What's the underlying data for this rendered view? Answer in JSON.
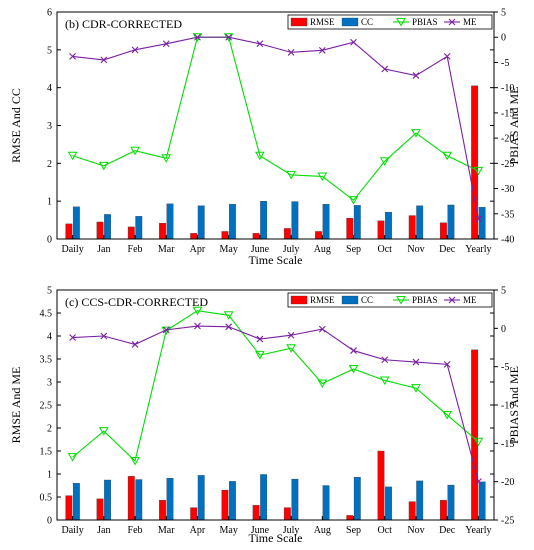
{
  "chart_data": [
    {
      "type": "bar",
      "title": "(b) CDR-CORRECTED",
      "xlabel": "Time Scale",
      "ylabel": "RMSE And CC",
      "y2label": "PBIAS And ME",
      "ylim": [
        0,
        6
      ],
      "y2lim": [
        -40,
        5
      ],
      "yticks": [
        "0",
        "1",
        "2",
        "3",
        "4",
        "5",
        "6"
      ],
      "y2ticks": [
        "5",
        "0",
        "-5",
        "-10",
        "-15",
        "-20",
        "-25",
        "-30",
        "-35",
        "-40"
      ],
      "categories": [
        "Daily",
        "Jan",
        "Feb",
        "Mar",
        "Apr",
        "May",
        "June",
        "July",
        "Aug",
        "Sep",
        "Oct",
        "Nov",
        "Dec",
        "Yearly"
      ],
      "legend_position": "top-right",
      "series": [
        {
          "name": "RMSE",
          "kind": "bar",
          "axis": "left",
          "color": "#ff0000",
          "values": [
            0.4,
            0.45,
            0.32,
            0.42,
            0.15,
            0.2,
            0.15,
            0.28,
            0.2,
            0.55,
            0.48,
            0.62,
            0.43,
            4.05
          ]
        },
        {
          "name": "CC",
          "kind": "bar",
          "axis": "left",
          "color": "#0070c0",
          "values": [
            0.85,
            0.65,
            0.6,
            0.93,
            0.88,
            0.92,
            1.0,
            0.99,
            0.92,
            0.89,
            0.71,
            0.88,
            0.9,
            0.84
          ]
        },
        {
          "name": "PBIAS",
          "kind": "line",
          "axis": "right",
          "marker": "triangle-down",
          "color": "#00dd00",
          "values": [
            -23.5,
            -25.5,
            -22.5,
            -24.0,
            0.0,
            0.0,
            -23.5,
            -27.3,
            -27.6,
            -32.3,
            -24.6,
            -19.0,
            -23.5,
            -26.5
          ]
        },
        {
          "name": "ME",
          "kind": "line",
          "axis": "right",
          "marker": "x",
          "color": "#7a1fa2",
          "values": [
            -3.8,
            -4.5,
            -2.5,
            -1.3,
            0.0,
            0.0,
            -1.3,
            -3.0,
            -2.6,
            -1.0,
            -6.3,
            -7.6,
            -3.8,
            -36.0
          ]
        }
      ]
    },
    {
      "type": "bar",
      "title": "(c) CCS-CDR-CORRECTED",
      "xlabel": "Time Scale",
      "ylabel": "RMSE And ME",
      "y2label": "PBIAS And ME",
      "ylim": [
        0,
        5
      ],
      "y2lim": [
        -25,
        5
      ],
      "yticks": [
        "0",
        "0.5",
        "1",
        "1.5",
        "2",
        "2.5",
        "3",
        "3.5",
        "4",
        "4.5",
        "5"
      ],
      "y2ticks": [
        "5",
        "0",
        "-5",
        "-10",
        "-15",
        "-20",
        "-25"
      ],
      "categories": [
        "Daily",
        "Jan",
        "Feb",
        "Mar",
        "Apr",
        "May",
        "June",
        "July",
        "Aug",
        "Sep",
        "Oct",
        "Nov",
        "Dec",
        "Yearly"
      ],
      "legend_position": "top-right",
      "series": [
        {
          "name": "RMSE",
          "kind": "bar",
          "axis": "left",
          "color": "#ff0000",
          "values": [
            0.53,
            0.46,
            0.95,
            0.43,
            0.27,
            0.65,
            0.32,
            0.27,
            0.0,
            0.1,
            1.5,
            0.4,
            0.43,
            3.7
          ]
        },
        {
          "name": "CC",
          "kind": "bar",
          "axis": "left",
          "color": "#0070c0",
          "values": [
            0.8,
            0.87,
            0.88,
            0.91,
            0.97,
            0.84,
            0.99,
            0.89,
            0.75,
            0.93,
            0.72,
            0.85,
            0.76,
            0.83
          ]
        },
        {
          "name": "PBIAS",
          "kind": "line",
          "axis": "right",
          "marker": "triangle-down",
          "color": "#00dd00",
          "values": [
            -16.8,
            -13.4,
            -17.3,
            -0.3,
            2.3,
            1.7,
            -3.5,
            -2.6,
            -7.2,
            -5.3,
            -6.8,
            -7.8,
            -11.3,
            -14.8
          ]
        },
        {
          "name": "ME",
          "kind": "line",
          "axis": "right",
          "marker": "x",
          "color": "#7a1fa2",
          "values": [
            -1.2,
            -1.0,
            -2.1,
            -0.2,
            0.3,
            0.2,
            -1.4,
            -0.9,
            -0.1,
            -2.9,
            -4.1,
            -4.4,
            -4.7,
            -20.0
          ]
        }
      ]
    }
  ]
}
